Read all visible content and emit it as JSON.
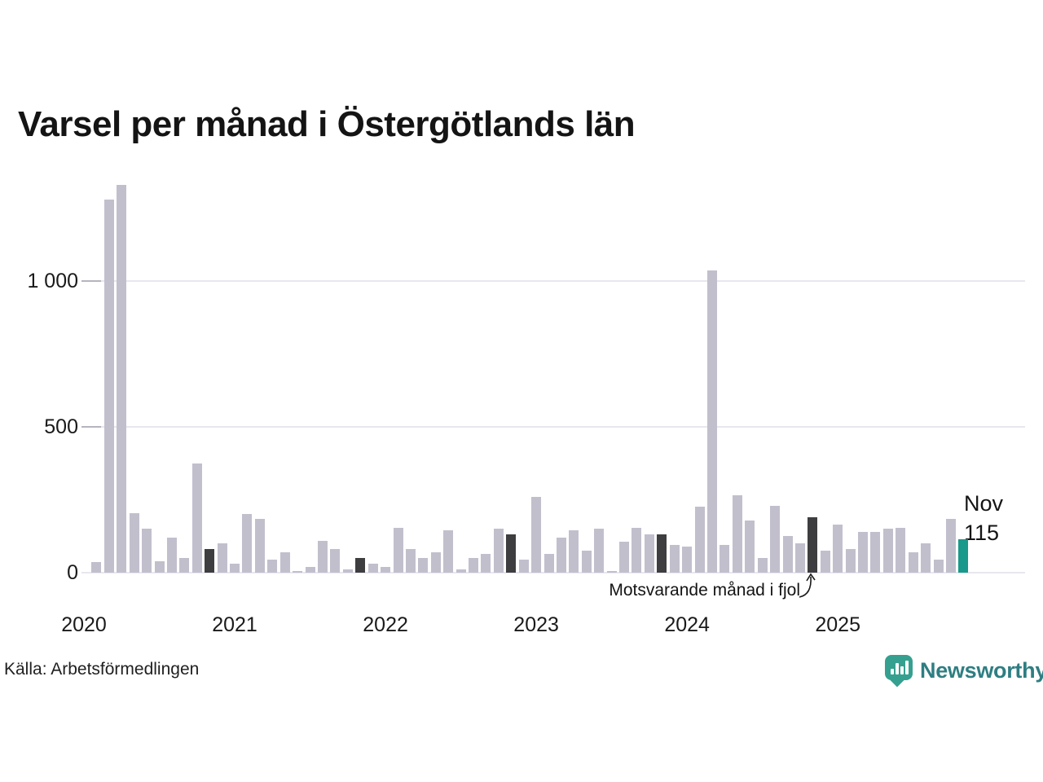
{
  "title": "Varsel per månad i Östergötlands län",
  "source": "Källa: Arbetsförmedlingen",
  "branding": {
    "logo_text": "Newsworthy",
    "logo_text_color": "#2e7e82",
    "logo_icon_color": "#35a08f"
  },
  "chart_data": {
    "type": "bar",
    "title": "Varsel per månad i Östergötlands län",
    "xlabel": "",
    "ylabel": "",
    "ylim": [
      0,
      1380
    ],
    "grid": "horizontal",
    "legend": "none",
    "y_axis": {
      "ticks": [
        0,
        500,
        1000
      ],
      "tick_labels": [
        "0",
        "500",
        "1 000"
      ]
    },
    "x_axis": {
      "tick_labels": [
        "2020",
        "2021",
        "2022",
        "2023",
        "2024",
        "2025"
      ],
      "tick_month_indices": [
        0,
        12,
        24,
        36,
        48,
        60
      ]
    },
    "categories": [
      "jan 2020",
      "feb 2020",
      "mar 2020",
      "apr 2020",
      "maj 2020",
      "jun 2020",
      "jul 2020",
      "aug 2020",
      "sep 2020",
      "okt 2020",
      "nov 2020",
      "dec 2020",
      "jan 2021",
      "feb 2021",
      "mar 2021",
      "apr 2021",
      "maj 2021",
      "jun 2021",
      "jul 2021",
      "aug 2021",
      "sep 2021",
      "okt 2021",
      "nov 2021",
      "dec 2021",
      "jan 2022",
      "feb 2022",
      "mar 2022",
      "apr 2022",
      "maj 2022",
      "jun 2022",
      "jul 2022",
      "aug 2022",
      "sep 2022",
      "okt 2022",
      "nov 2022",
      "dec 2022",
      "jan 2023",
      "feb 2023",
      "mar 2023",
      "apr 2023",
      "maj 2023",
      "jun 2023",
      "jul 2023",
      "aug 2023",
      "sep 2023",
      "okt 2023",
      "nov 2023",
      "dec 2023",
      "jan 2024",
      "feb 2024",
      "mar 2024",
      "apr 2024",
      "maj 2024",
      "jun 2024",
      "jul 2024",
      "aug 2024",
      "sep 2024",
      "okt 2024",
      "nov 2024",
      "dec 2024",
      "jan 2025",
      "feb 2025",
      "mar 2025",
      "apr 2025",
      "maj 2025",
      "jun 2025",
      "jul 2025",
      "aug 2025",
      "sep 2025",
      "okt 2025",
      "nov 2025"
    ],
    "values": [
      0,
      35,
      1280,
      1330,
      205,
      150,
      40,
      120,
      50,
      375,
      80,
      100,
      30,
      200,
      185,
      45,
      70,
      5,
      20,
      110,
      80,
      10,
      50,
      30,
      20,
      155,
      80,
      50,
      70,
      145,
      10,
      50,
      65,
      150,
      130,
      45,
      260,
      65,
      120,
      145,
      75,
      150,
      5,
      105,
      155,
      130,
      130,
      95,
      90,
      225,
      1035,
      95,
      265,
      180,
      50,
      230,
      125,
      100,
      190,
      75,
      165,
      80,
      140,
      140,
      150,
      155,
      70,
      100,
      45,
      185,
      115
    ],
    "last_year_month_indices": [
      10,
      22,
      34,
      46,
      58
    ],
    "current_month_index": 70,
    "annotation": {
      "text": "Motsvarande månad i fjol",
      "target_index": 58
    },
    "current_point_label": {
      "month": "Nov",
      "value": 115
    },
    "colors": {
      "bar": "#c2bfcd",
      "last_year": "#3e3e40",
      "current": "#18998b",
      "gridline": "#e8e7ee",
      "axis_text": "#1a1a1a"
    }
  }
}
